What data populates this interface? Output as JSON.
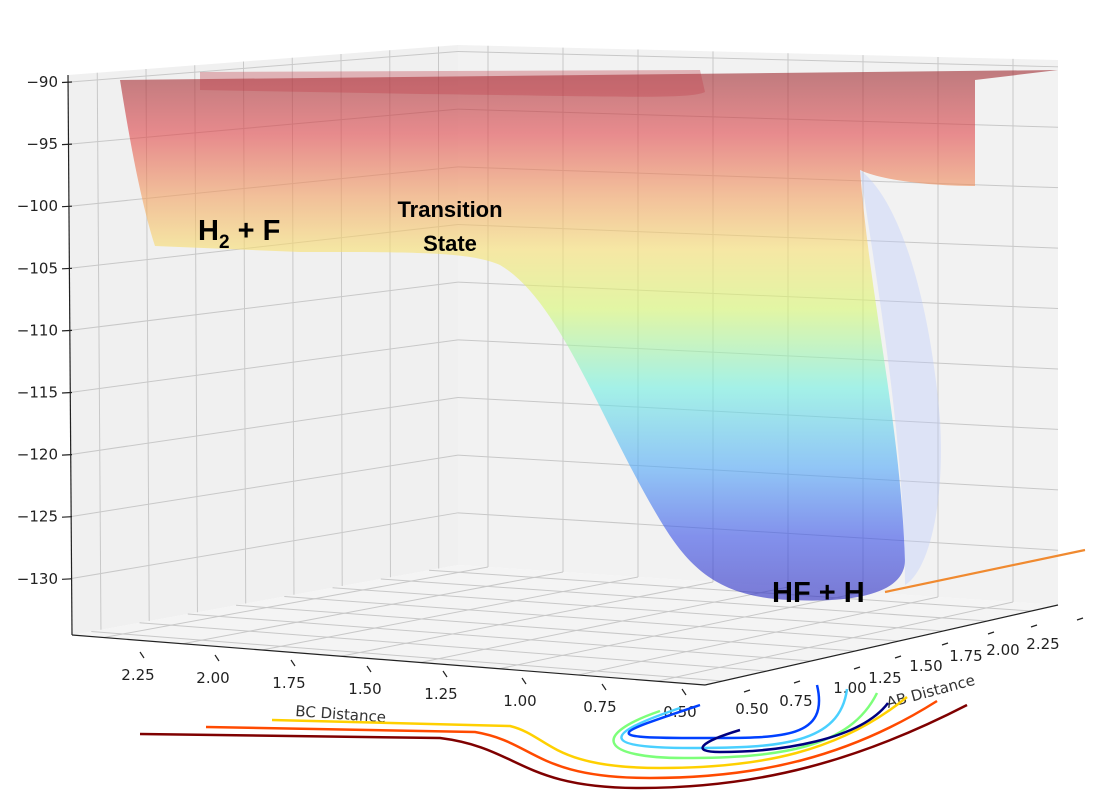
{
  "chart_data": {
    "type": "surface",
    "title": "",
    "zlabel": "",
    "xlabel": "BC Distance",
    "ylabel": "AB Distance",
    "z_ticks": [
      "−90",
      "−95",
      "−100",
      "−105",
      "−110",
      "−115",
      "−120",
      "−125",
      "−130"
    ],
    "z_values": [
      -90,
      -95,
      -100,
      -105,
      -110,
      -115,
      -120,
      -125,
      -130
    ],
    "zlim": [
      -133,
      -89
    ],
    "bc_ticks": [
      "2.25",
      "2.00",
      "1.75",
      "1.50",
      "1.25",
      "1.00",
      "0.75",
      "0.50"
    ],
    "ab_ticks": [
      "0.50",
      "0.75",
      "1.00",
      "1.25",
      "1.50",
      "1.75",
      "2.00",
      "2.25"
    ],
    "colormap": "jet",
    "annotations": {
      "reactants": {
        "main": "H",
        "sub": "2",
        "rest": " + F"
      },
      "transition_line1": "Transition",
      "transition_line2": "State",
      "products": "HF + H"
    },
    "surface": {
      "plateau_energy": -90,
      "reactant_well": -103,
      "product_well": -132
    },
    "contour_colors": [
      "#7f0000",
      "#ff4a00",
      "#ffd000",
      "#7dff7a",
      "#4ad0ff",
      "#0040ff",
      "#00007f"
    ],
    "path_line_color": "#f08a30"
  }
}
